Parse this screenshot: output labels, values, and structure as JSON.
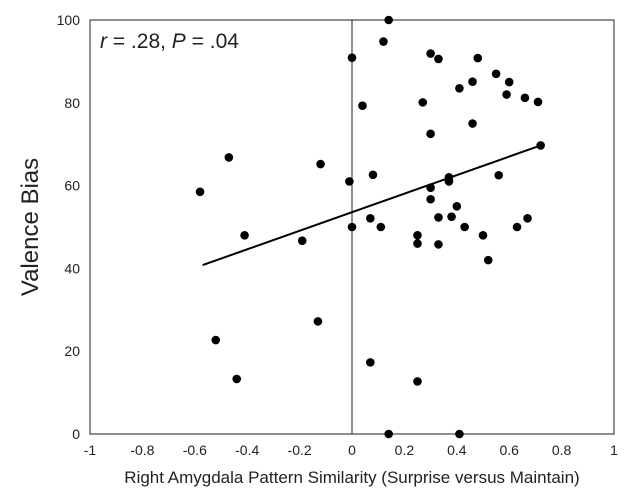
{
  "chart_data": {
    "type": "scatter",
    "title": "",
    "xlabel": "Right Amygdala Pattern Similarity (Surprise versus Maintain)",
    "ylabel": "Valence Bias",
    "xlim": [
      -1,
      1
    ],
    "ylim": [
      0,
      100
    ],
    "x_ticks": [
      "-1",
      "-0.8",
      "-0.6",
      "-0.4",
      "-0.2",
      "0",
      "0.2",
      "0.4",
      "0.6",
      "0.8",
      "1"
    ],
    "y_ticks": [
      "0",
      "20",
      "40",
      "60",
      "80",
      "100"
    ],
    "grid": false,
    "annotation": {
      "r_symbol": "r",
      "r_value": " = .28, ",
      "p_symbol": "P",
      "p_value": " = .04"
    },
    "points": [
      {
        "x": -0.58,
        "y": 58.5
      },
      {
        "x": -0.52,
        "y": 22.7
      },
      {
        "x": -0.47,
        "y": 66.8
      },
      {
        "x": -0.44,
        "y": 13.3
      },
      {
        "x": -0.41,
        "y": 48.0
      },
      {
        "x": -0.19,
        "y": 46.7
      },
      {
        "x": -0.13,
        "y": 27.2
      },
      {
        "x": -0.12,
        "y": 65.2
      },
      {
        "x": -0.01,
        "y": 61.0
      },
      {
        "x": 0.0,
        "y": 90.9
      },
      {
        "x": 0.0,
        "y": 50.0
      },
      {
        "x": 0.04,
        "y": 79.3
      },
      {
        "x": 0.07,
        "y": 52.1
      },
      {
        "x": 0.07,
        "y": 17.3
      },
      {
        "x": 0.08,
        "y": 62.6
      },
      {
        "x": 0.11,
        "y": 50.0
      },
      {
        "x": 0.12,
        "y": 94.8
      },
      {
        "x": 0.14,
        "y": 100.0
      },
      {
        "x": 0.14,
        "y": 0.0
      },
      {
        "x": 0.25,
        "y": 46.0
      },
      {
        "x": 0.25,
        "y": 48.0
      },
      {
        "x": 0.25,
        "y": 12.7
      },
      {
        "x": 0.27,
        "y": 80.1
      },
      {
        "x": 0.3,
        "y": 91.9
      },
      {
        "x": 0.3,
        "y": 72.5
      },
      {
        "x": 0.3,
        "y": 59.5
      },
      {
        "x": 0.3,
        "y": 56.7
      },
      {
        "x": 0.33,
        "y": 90.6
      },
      {
        "x": 0.33,
        "y": 52.3
      },
      {
        "x": 0.33,
        "y": 45.8
      },
      {
        "x": 0.37,
        "y": 62.0
      },
      {
        "x": 0.37,
        "y": 61.0
      },
      {
        "x": 0.38,
        "y": 52.5
      },
      {
        "x": 0.4,
        "y": 55.0
      },
      {
        "x": 0.41,
        "y": 83.5
      },
      {
        "x": 0.41,
        "y": 0.0
      },
      {
        "x": 0.43,
        "y": 50.0
      },
      {
        "x": 0.46,
        "y": 85.1
      },
      {
        "x": 0.46,
        "y": 75.0
      },
      {
        "x": 0.48,
        "y": 90.8
      },
      {
        "x": 0.5,
        "y": 48.0
      },
      {
        "x": 0.52,
        "y": 42.0
      },
      {
        "x": 0.55,
        "y": 87.0
      },
      {
        "x": 0.56,
        "y": 62.5
      },
      {
        "x": 0.59,
        "y": 82.0
      },
      {
        "x": 0.6,
        "y": 85.0
      },
      {
        "x": 0.63,
        "y": 50.0
      },
      {
        "x": 0.66,
        "y": 81.2
      },
      {
        "x": 0.67,
        "y": 52.1
      },
      {
        "x": 0.71,
        "y": 80.2
      },
      {
        "x": 0.72,
        "y": 69.7
      }
    ],
    "regression": {
      "x": [
        -0.57,
        0.72
      ],
      "y": [
        40.8,
        69.7
      ]
    },
    "zero_line_x": 0,
    "colors": {
      "points": "#000000",
      "line": "#000000",
      "frame": "#222222"
    }
  }
}
